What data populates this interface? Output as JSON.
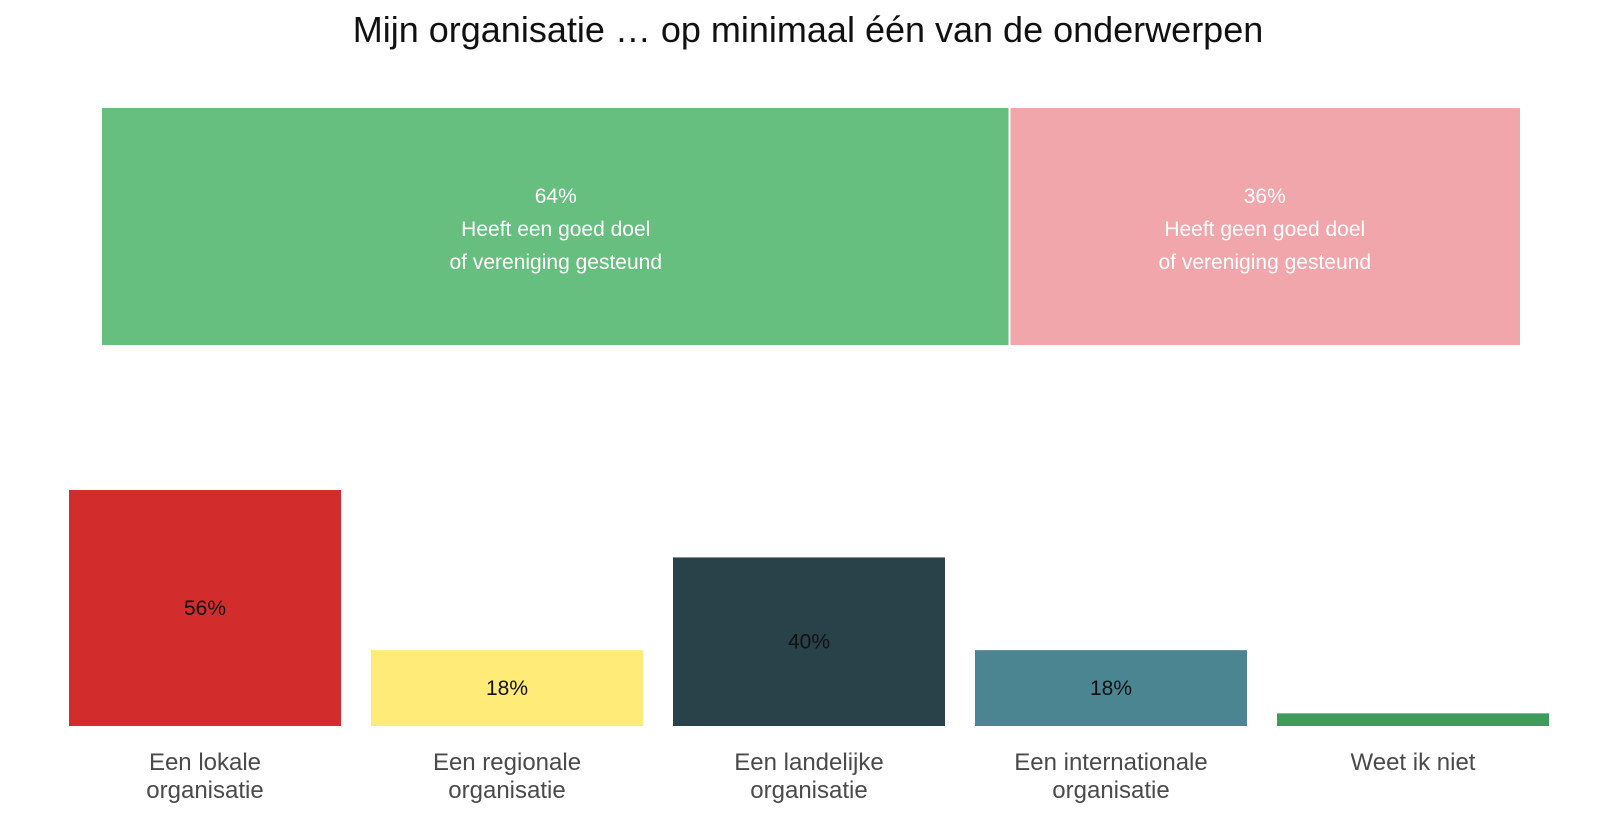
{
  "chart_data": [
    {
      "type": "bar",
      "orientation": "horizontal-stacked",
      "title": "Mijn organisatie … op minimaal één van de onderwerpen",
      "series": [
        {
          "value": 64,
          "value_label": "64%",
          "label_lines": [
            "Heeft een goed doel",
            "of vereniging gesteund"
          ],
          "color": "#66bf7f"
        },
        {
          "value": 36,
          "value_label": "36%",
          "label_lines": [
            "Heeft geen goed doel",
            "of vereniging gesteund"
          ],
          "color": "#f0a6aa"
        }
      ]
    },
    {
      "type": "bar",
      "ylim": [
        0,
        56
      ],
      "categories": [
        [
          "Een lokale",
          "organisatie"
        ],
        [
          "Een regionale",
          "organisatie"
        ],
        [
          "Een landelijke",
          "organisatie"
        ],
        [
          "Een internationale",
          "organisatie"
        ],
        [
          "Weet ik niet"
        ]
      ],
      "values": [
        56,
        18,
        40,
        18,
        3
      ],
      "value_labels": [
        "56%",
        "18%",
        "40%",
        "18%",
        ""
      ],
      "colors": [
        "#d22c2c",
        "#ffeb78",
        "#294149",
        "#4b8591",
        "#3d9b5b"
      ]
    }
  ]
}
